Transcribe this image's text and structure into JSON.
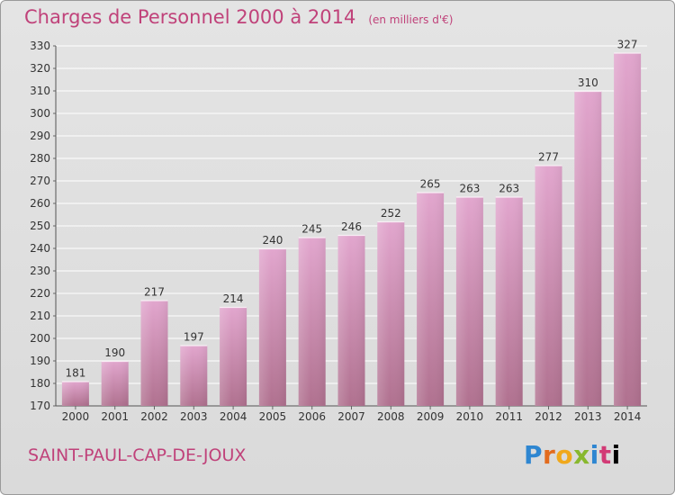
{
  "header": {
    "title": "Charges de Personnel 2000 à 2014",
    "unit": "(en milliers d'€)"
  },
  "place_name": "SAINT-PAUL-CAP-DE-JOUX",
  "logo_text": "Proxiti",
  "colors": {
    "title": "#c0427a",
    "bar_top": "#e2a6ce",
    "bar_bottom": "#b0718f",
    "grid": "#ffffff",
    "background": "#dedede"
  },
  "chart_data": {
    "type": "bar",
    "categories": [
      "2000",
      "2001",
      "2002",
      "2003",
      "2004",
      "2005",
      "2006",
      "2007",
      "2008",
      "2009",
      "2010",
      "2011",
      "2012",
      "2013",
      "2014"
    ],
    "values": [
      181,
      190,
      217,
      197,
      214,
      240,
      245,
      246,
      252,
      265,
      263,
      263,
      277,
      310,
      327
    ],
    "ylim": [
      170,
      330
    ],
    "yticks": [
      170,
      180,
      190,
      200,
      210,
      220,
      230,
      240,
      250,
      260,
      270,
      280,
      290,
      300,
      310,
      320,
      330
    ],
    "grid": true,
    "data_labels": true
  }
}
